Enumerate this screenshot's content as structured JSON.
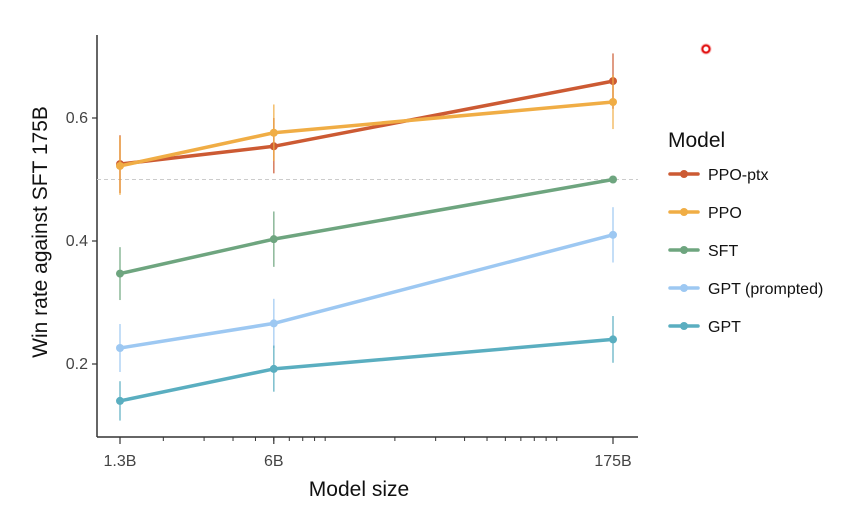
{
  "chart_data": {
    "type": "line",
    "xlabel": "Model size",
    "ylabel": "Win rate against SFT 175B",
    "x_scale": "log",
    "x": [
      "1.3B",
      "6B",
      "175B"
    ],
    "x_values": [
      1.3,
      6,
      175
    ],
    "xlim": [
      1.3,
      175
    ],
    "ylim": [
      0.08,
      0.76
    ],
    "y_ticks": [
      0.2,
      0.4,
      0.6
    ],
    "y_tick_labels": [
      "0.2",
      "0.4",
      "0.6"
    ],
    "reference_line": 0.5,
    "grid": false,
    "legend_title": "Model",
    "legend_position": "right",
    "series": [
      {
        "name": "PPO-ptx",
        "color": "#cc5a33",
        "values": [
          0.525,
          0.554,
          0.66
        ],
        "err_low": [
          0.478,
          0.51,
          0.615
        ],
        "err_high": [
          0.572,
          0.6,
          0.705
        ]
      },
      {
        "name": "PPO",
        "color": "#f0ad45",
        "values": [
          0.522,
          0.576,
          0.626
        ],
        "err_low": [
          0.475,
          0.53,
          0.582
        ],
        "err_high": [
          0.57,
          0.622,
          0.67
        ]
      },
      {
        "name": "SFT",
        "color": "#6ea57f",
        "values": [
          0.347,
          0.403,
          0.5
        ],
        "err_low": [
          0.304,
          0.358,
          0.5
        ],
        "err_high": [
          0.39,
          0.448,
          0.5
        ]
      },
      {
        "name": "GPT (prompted)",
        "color": "#9dc8f2",
        "values": [
          0.226,
          0.266,
          0.41
        ],
        "err_low": [
          0.187,
          0.226,
          0.365
        ],
        "err_high": [
          0.265,
          0.306,
          0.455
        ]
      },
      {
        "name": "GPT",
        "color": "#5aaec0",
        "values": [
          0.14,
          0.192,
          0.24
        ],
        "err_low": [
          0.108,
          0.155,
          0.202
        ],
        "err_high": [
          0.172,
          0.23,
          0.278
        ]
      }
    ]
  }
}
